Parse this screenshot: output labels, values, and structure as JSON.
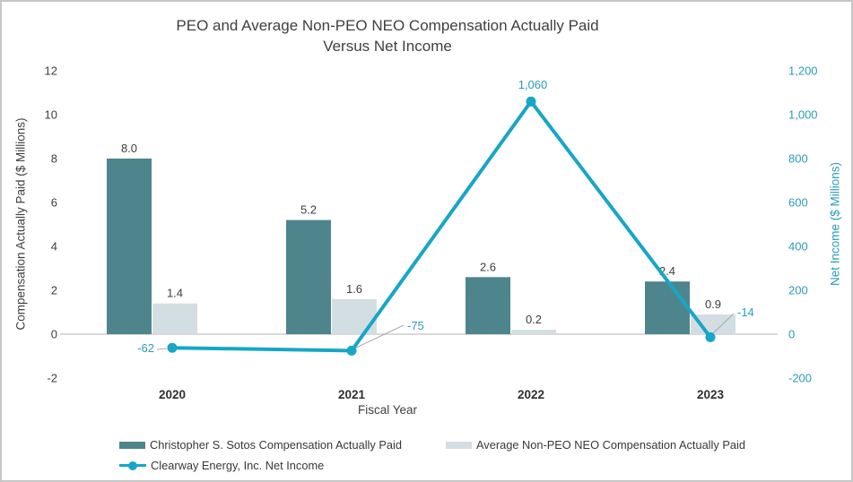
{
  "colors": {
    "bar_dark": "#4e858d",
    "bar_light": "#d3dee2",
    "line_teal": "#17a6c6",
    "teal_text": "#2b9db9",
    "dark_text": "#3d3d3d",
    "axis_line": "#d9d9d9",
    "leader_line": "#a8a8a8",
    "border": "#c6c6c6"
  },
  "chart_data": {
    "type": "combo",
    "title_lines": [
      "PEO and Average Non-PEO NEO Compensation Actually Paid",
      "Versus Net Income"
    ],
    "categories": [
      "2020",
      "2021",
      "2022",
      "2023"
    ],
    "x_axis_label": "Fiscal Year",
    "left_axis": {
      "label": "Compensation Actually Paid ($ Millions)",
      "ticks": [
        12,
        10,
        8,
        6,
        4,
        2,
        0,
        -2
      ],
      "tick_labels": [
        "12",
        "10",
        "8",
        "6",
        "4",
        "2",
        "0",
        "-2"
      ],
      "range": [
        -2,
        12
      ]
    },
    "right_axis": {
      "label": "Net Income ($ Millions)",
      "tick_values": [
        1200,
        1000,
        800,
        600,
        400,
        200,
        0,
        -200
      ],
      "tick_labels": [
        "1,200",
        "1,000",
        "800",
        "600",
        "400",
        "200",
        "0",
        "-200"
      ],
      "range": [
        -200,
        1200
      ]
    },
    "gridlines": false,
    "legend_position": "bottom",
    "series": [
      {
        "name": "Christopher S. Sotos Compensation Actually Paid",
        "type": "bar",
        "axis": "left",
        "color": "#4e858d",
        "values": [
          8.0,
          5.2,
          2.6,
          2.4
        ],
        "labels": [
          "8.0",
          "5.2",
          "2.6",
          "2.4"
        ]
      },
      {
        "name": "Average Non-PEO NEO Compensation Actually Paid",
        "type": "bar",
        "axis": "left",
        "color": "#d3dee2",
        "values": [
          1.4,
          1.6,
          0.2,
          0.9
        ],
        "labels": [
          "1.4",
          "1.6",
          "0.2",
          "0.9"
        ]
      },
      {
        "name": "Clearway Energy, Inc. Net Income",
        "type": "line",
        "axis": "right",
        "color": "#17a6c6",
        "values": [
          -62,
          -75,
          1060,
          -14
        ],
        "labels": [
          "-62",
          "-75",
          "1,060",
          "-14"
        ]
      }
    ]
  }
}
